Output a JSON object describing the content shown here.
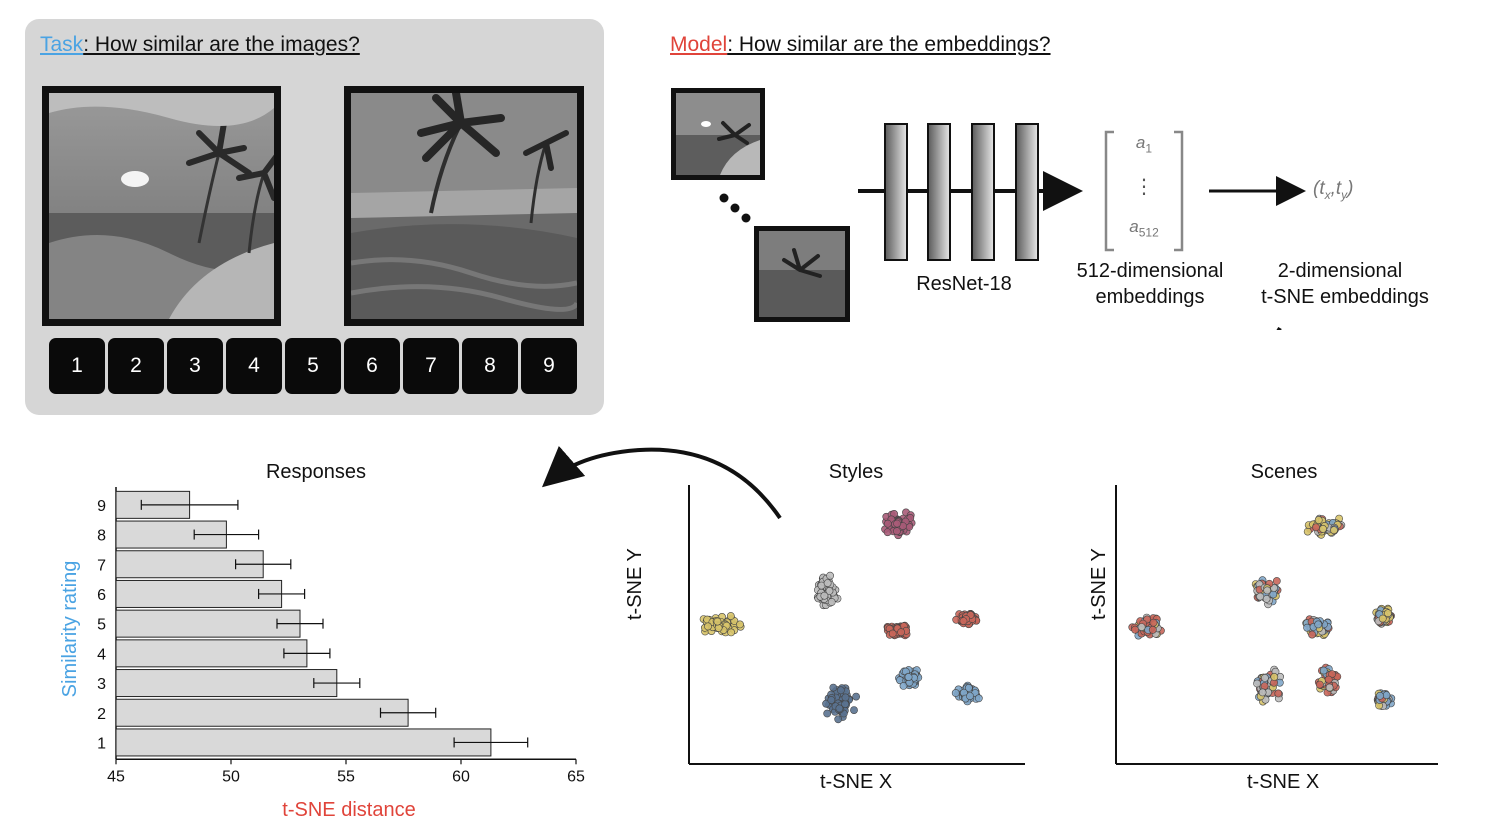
{
  "task": {
    "label": "Task",
    "question": ": How similar are the images?",
    "scale_keys": [
      "1",
      "2",
      "3",
      "4",
      "5",
      "6",
      "7",
      "8",
      "9"
    ]
  },
  "model": {
    "label": "Model",
    "question": ": How similar are the embeddings?",
    "network_label": "ResNet-18",
    "vector_entries": {
      "first": "a",
      "first_sub": "1",
      "dots": "⋮",
      "last": "a",
      "last_sub": "512"
    },
    "embed512_line1": "512-dimensional",
    "embed512_line2": "embeddings",
    "embed2_line1": "2-dimensional",
    "embed2_line2": "t-SNE embeddings",
    "tsne_coord": {
      "open": "(",
      "t1": "t",
      "s1": "x",
      "comma": ",",
      "t2": "t",
      "s2": "y",
      "close": ")"
    }
  },
  "colors": {
    "task_blue": "#4aa3e3",
    "model_red": "#e0443a",
    "panel_gray": "#d6d6d6",
    "bar_fill": "#d9d9d9",
    "cluster_yellow": "#d8c46a",
    "cluster_gray": "#bdbdbd",
    "cluster_red": "#c9665a",
    "cluster_blue": "#7fa6c9",
    "cluster_darkblue": "#5a7290",
    "cluster_magenta": "#a95b78"
  },
  "chart_data": [
    {
      "type": "bar",
      "orientation": "horizontal",
      "title": "Responses",
      "xlabel": "t-SNE distance",
      "ylabel": "Similarity rating",
      "xlim": [
        45,
        65
      ],
      "xticks": [
        45,
        50,
        55,
        60,
        65
      ],
      "categories": [
        "1",
        "2",
        "3",
        "4",
        "5",
        "6",
        "7",
        "8",
        "9"
      ],
      "values": [
        61.3,
        57.7,
        54.6,
        53.3,
        53.0,
        52.2,
        51.4,
        49.8,
        48.2
      ],
      "error": [
        1.6,
        1.2,
        1.0,
        1.0,
        1.0,
        1.0,
        1.2,
        1.4,
        2.1
      ]
    },
    {
      "type": "scatter",
      "title": "Styles",
      "xlabel": "t-SNE X",
      "ylabel": "t-SNE Y",
      "clusters": [
        {
          "name": "magenta",
          "center": [
            0.63,
            0.86
          ],
          "spread": [
            0.06,
            0.05
          ]
        },
        {
          "name": "gray",
          "center": [
            0.41,
            0.62
          ],
          "spread": [
            0.04,
            0.07
          ]
        },
        {
          "name": "yellow",
          "center": [
            0.1,
            0.5
          ],
          "spread": [
            0.07,
            0.04
          ]
        },
        {
          "name": "red",
          "center": [
            0.62,
            0.48
          ],
          "spread": [
            0.04,
            0.03
          ]
        },
        {
          "name": "red",
          "center": [
            0.83,
            0.52
          ],
          "spread": [
            0.04,
            0.03
          ]
        },
        {
          "name": "blue",
          "center": [
            0.66,
            0.31
          ],
          "spread": [
            0.04,
            0.04
          ]
        },
        {
          "name": "blue",
          "center": [
            0.83,
            0.25
          ],
          "spread": [
            0.04,
            0.035
          ]
        },
        {
          "name": "darkblue",
          "center": [
            0.45,
            0.22
          ],
          "spread": [
            0.05,
            0.08
          ]
        }
      ]
    },
    {
      "type": "scatter",
      "title": "Scenes",
      "xlabel": "t-SNE X",
      "ylabel": "t-SNE Y",
      "clusters": [
        {
          "name": "mixed",
          "center": [
            0.65,
            0.85
          ],
          "spread": [
            0.07,
            0.04
          ]
        },
        {
          "name": "mixed",
          "center": [
            0.47,
            0.62
          ],
          "spread": [
            0.05,
            0.06
          ]
        },
        {
          "name": "mixed",
          "center": [
            0.1,
            0.49
          ],
          "spread": [
            0.07,
            0.04
          ]
        },
        {
          "name": "mixed",
          "center": [
            0.63,
            0.49
          ],
          "spread": [
            0.05,
            0.04
          ]
        },
        {
          "name": "mixed",
          "center": [
            0.83,
            0.53
          ],
          "spread": [
            0.03,
            0.04
          ]
        },
        {
          "name": "mixed",
          "center": [
            0.47,
            0.28
          ],
          "spread": [
            0.05,
            0.07
          ]
        },
        {
          "name": "mixed",
          "center": [
            0.66,
            0.3
          ],
          "spread": [
            0.04,
            0.06
          ]
        },
        {
          "name": "mixed",
          "center": [
            0.83,
            0.23
          ],
          "spread": [
            0.03,
            0.03
          ]
        }
      ]
    }
  ]
}
